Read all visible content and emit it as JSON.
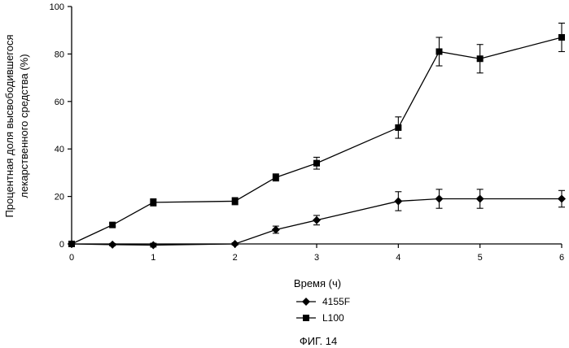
{
  "chart_data": {
    "type": "line",
    "title": "",
    "caption": "ФИГ. 14",
    "xlabel": "Время (ч)",
    "ylabel_lines": [
      "Процентная доля высвободившегося",
      "лекарственного средства (%)"
    ],
    "xlim": [
      0,
      6
    ],
    "ylim": [
      0,
      100
    ],
    "xticks": [
      0,
      1,
      2,
      3,
      4,
      5,
      6
    ],
    "yticks": [
      0,
      20,
      40,
      60,
      80,
      100
    ],
    "grid": false,
    "legend_position": "bottom-center",
    "series": [
      {
        "name": "4155F",
        "marker": "diamond",
        "color": "#000000",
        "x": [
          0,
          0.5,
          1,
          2,
          2.5,
          3,
          4,
          4.5,
          5,
          6
        ],
        "y": [
          0,
          -0.3,
          -0.5,
          0,
          6,
          10,
          18,
          19,
          19,
          19
        ],
        "err": [
          0,
          0.5,
          0.8,
          0.5,
          1.5,
          2,
          4,
          4,
          4,
          3.5
        ]
      },
      {
        "name": "L100",
        "marker": "square",
        "color": "#000000",
        "x": [
          0,
          0.5,
          1,
          2,
          2.5,
          3,
          4,
          4.5,
          5,
          6
        ],
        "y": [
          0,
          8,
          17.5,
          18,
          28,
          34,
          49,
          81,
          78,
          87
        ],
        "err": [
          0,
          0.8,
          1.5,
          1.5,
          1.5,
          2.5,
          4.5,
          6,
          6,
          6
        ]
      }
    ]
  }
}
